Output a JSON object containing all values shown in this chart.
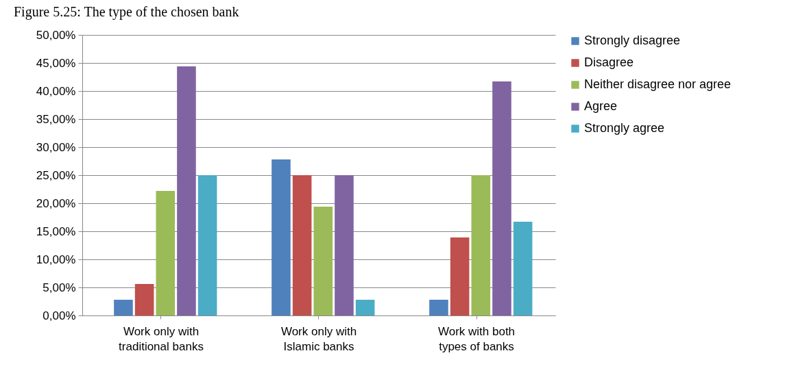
{
  "chart_data": {
    "type": "bar",
    "title": "Figure 5.25: The type of the chosen bank",
    "categories": [
      "Work only with traditional banks",
      "Work only with Islamic banks",
      "Work with both types of banks"
    ],
    "series": [
      {
        "name": "Strongly disagree",
        "color": "#4f81bd",
        "values": [
          2.8,
          27.8,
          2.8
        ]
      },
      {
        "name": "Disagree",
        "color": "#c0504d",
        "values": [
          5.6,
          25,
          13.9
        ]
      },
      {
        "name": "Neither disagree nor agree",
        "color": "#9bbb59",
        "values": [
          22.2,
          19.4,
          25
        ]
      },
      {
        "name": "Agree",
        "color": "#8064a2",
        "values": [
          44.4,
          25,
          41.7
        ]
      },
      {
        "name": "Strongly agree",
        "color": "#4bacc6",
        "values": [
          25,
          2.8,
          16.7
        ]
      }
    ],
    "ylim": [
      0,
      50
    ],
    "yticks": [
      {
        "value": 0,
        "label": "0,00%"
      },
      {
        "value": 5,
        "label": "5,00%"
      },
      {
        "value": 10,
        "label": "10,00%"
      },
      {
        "value": 15,
        "label": "15,00%"
      },
      {
        "value": 20,
        "label": "20,00%"
      },
      {
        "value": 25,
        "label": "25,00%"
      },
      {
        "value": 30,
        "label": "30,00%"
      },
      {
        "value": 35,
        "label": "35,00%"
      },
      {
        "value": 40,
        "label": "40,00%"
      },
      {
        "value": 45,
        "label": "45,00%"
      },
      {
        "value": 50,
        "label": "50,00%"
      }
    ],
    "grid": "y",
    "legend": "right"
  }
}
